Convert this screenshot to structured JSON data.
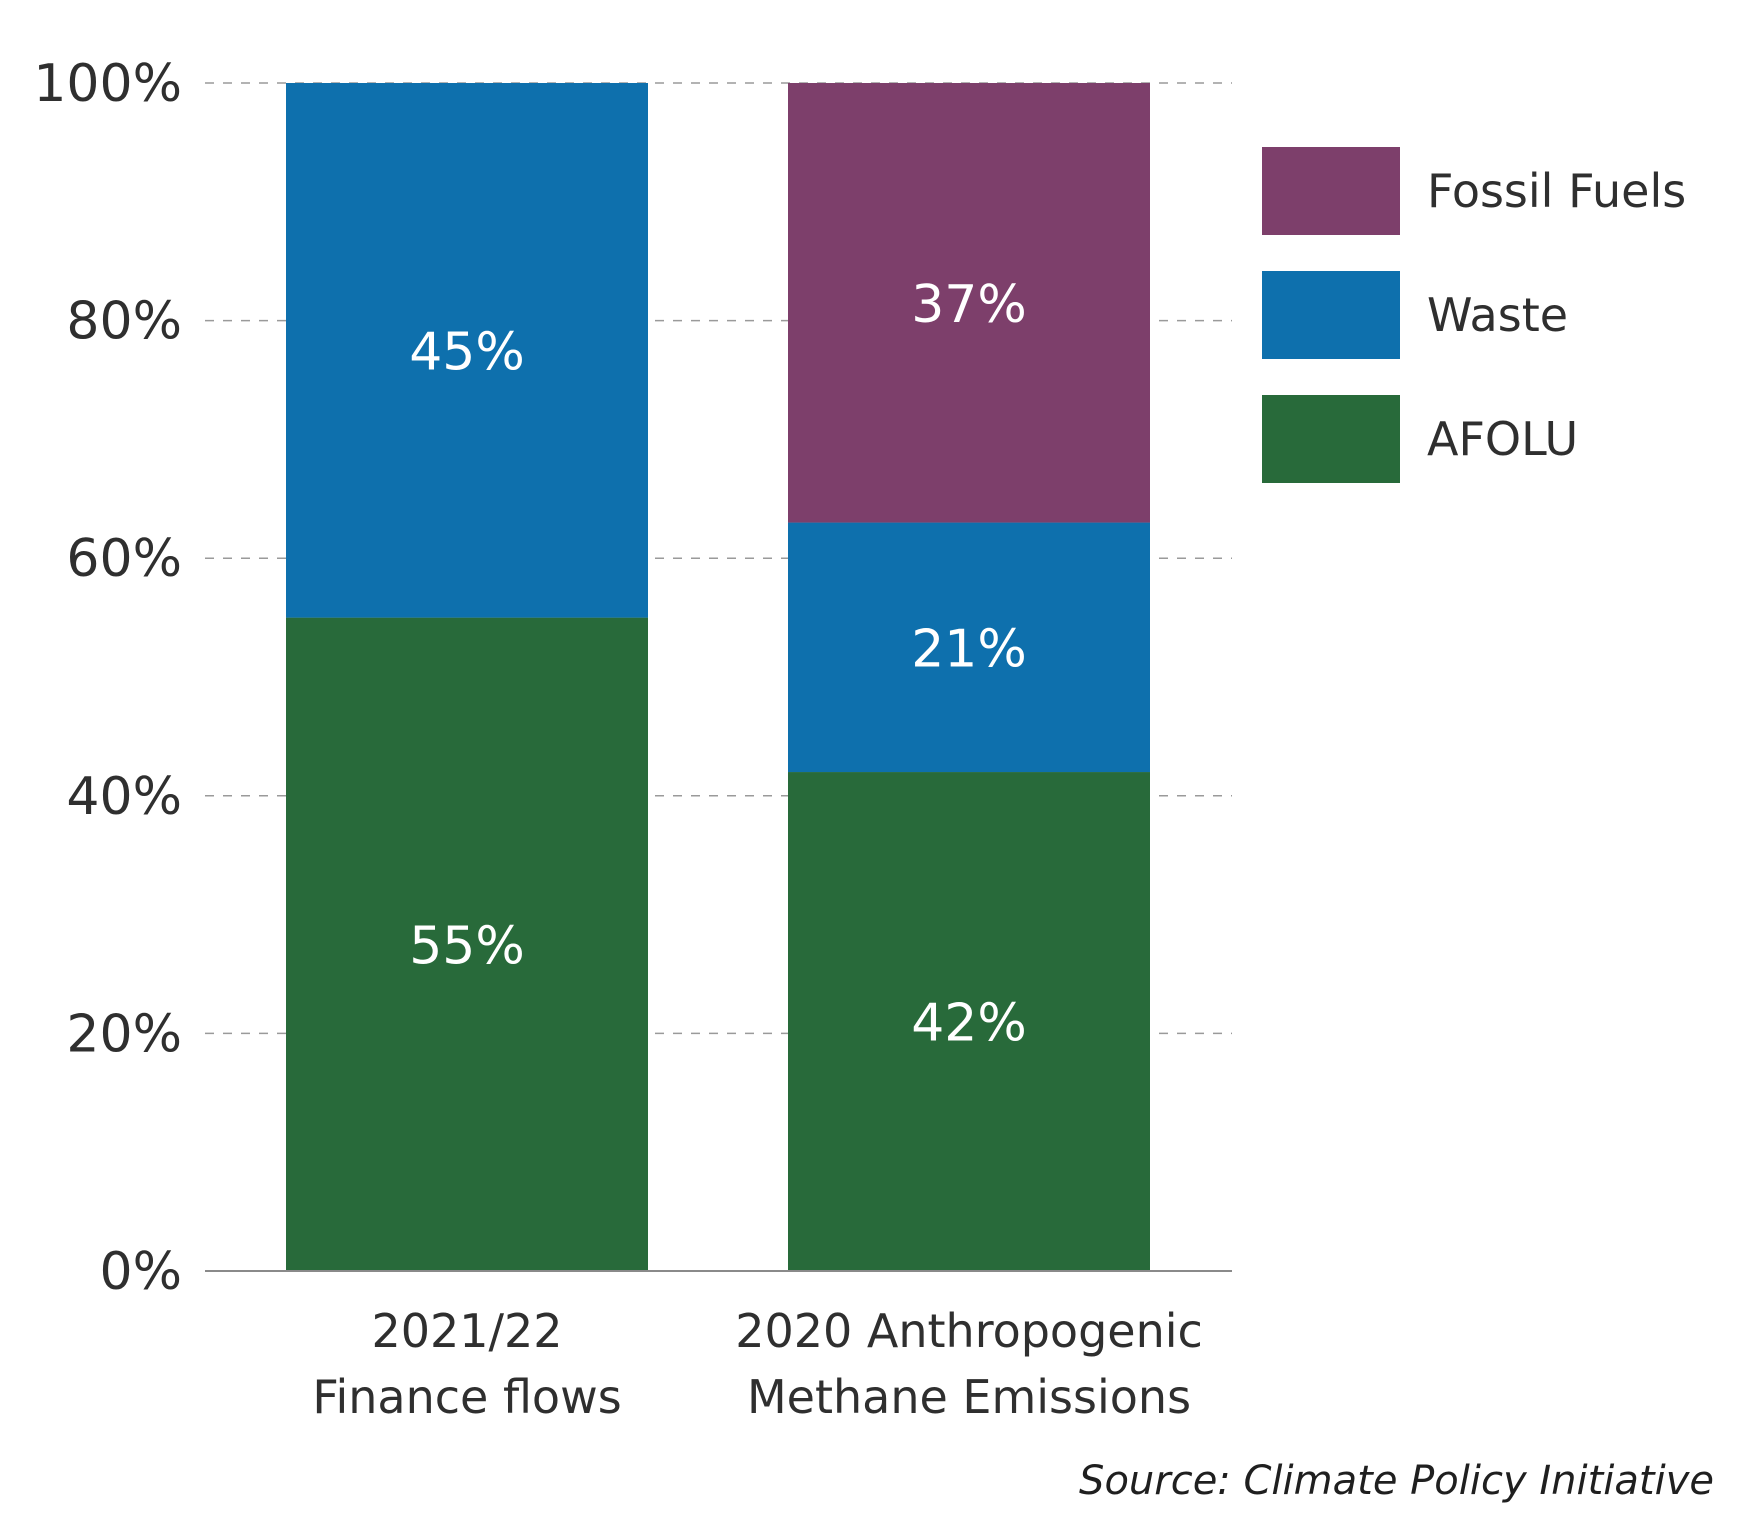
{
  "chart_data": {
    "type": "bar",
    "stacked": true,
    "categories": [
      [
        "2021/22",
        "Finance flows"
      ],
      [
        "2020 Anthropogenic",
        "Methane Emissions"
      ]
    ],
    "series": [
      {
        "name": "AFOLU",
        "color": "#286a3a",
        "values": [
          55,
          42
        ],
        "labels": [
          "55%",
          "42%"
        ]
      },
      {
        "name": "Waste",
        "color": "#0e70ad",
        "values": [
          45,
          21
        ],
        "labels": [
          "45%",
          "21%"
        ]
      },
      {
        "name": "Fossil Fuels",
        "color": "#7d3f6b",
        "values": [
          0,
          37
        ],
        "labels": [
          "",
          "37%"
        ]
      }
    ],
    "legend_order": [
      "Fossil Fuels",
      "Waste",
      "AFOLU"
    ],
    "legend_position": "top-right",
    "ylim": [
      0,
      100
    ],
    "yticks": [
      0,
      20,
      40,
      60,
      80,
      100
    ],
    "ytick_labels": [
      "0%",
      "20%",
      "40%",
      "60%",
      "80%",
      "100%"
    ],
    "grid": "horizontal dashed",
    "source": "Source: Climate Policy Initiative"
  }
}
